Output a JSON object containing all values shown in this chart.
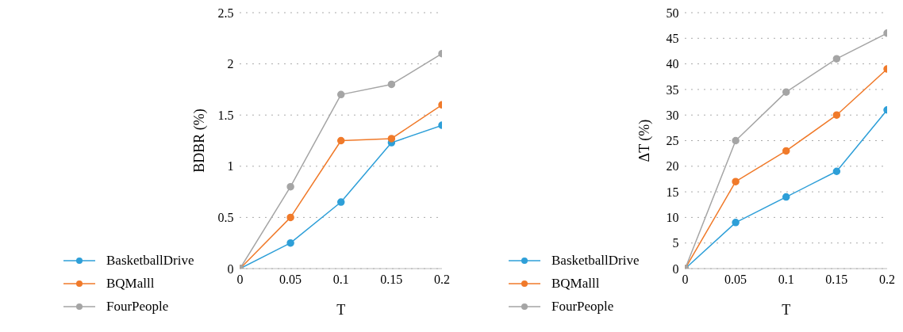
{
  "chart_data": [
    {
      "type": "line",
      "xlabel": "T",
      "ylabel": "BDBR (%)",
      "x": [
        0,
        0.05,
        0.1,
        0.15,
        0.2
      ],
      "xlim": [
        0,
        0.2
      ],
      "xticks": [
        0,
        0.05,
        0.1,
        0.15,
        0.2
      ],
      "ylim": [
        0,
        2.5
      ],
      "yticks": [
        0,
        0.5,
        1,
        1.5,
        2,
        2.5
      ],
      "grid": "y",
      "legend": "bottom",
      "marker": "circle",
      "line_style": "solid",
      "series": [
        {
          "name": "BasketballDrive",
          "color": "#2e9fd8",
          "values": [
            0,
            0.25,
            0.65,
            1.23,
            1.4
          ]
        },
        {
          "name": "BQMalll",
          "color": "#f07a2a",
          "values": [
            0,
            0.5,
            1.25,
            1.27,
            1.6
          ]
        },
        {
          "name": "FourPeople",
          "color": "#a5a5a5",
          "values": [
            0,
            0.8,
            1.7,
            1.8,
            2.1
          ]
        }
      ]
    },
    {
      "type": "line",
      "xlabel": "T",
      "ylabel": "ΔT (%)",
      "x": [
        0,
        0.05,
        0.1,
        0.15,
        0.2
      ],
      "xlim": [
        0,
        0.2
      ],
      "xticks": [
        0,
        0.05,
        0.1,
        0.15,
        0.2
      ],
      "ylim": [
        0,
        50
      ],
      "yticks": [
        0,
        5,
        10,
        15,
        20,
        25,
        30,
        35,
        40,
        45,
        50
      ],
      "grid": "y",
      "legend": "bottom",
      "marker": "circle",
      "line_style": "solid",
      "series": [
        {
          "name": "BasketballDrive",
          "color": "#2e9fd8",
          "values": [
            0,
            9,
            14,
            19,
            31
          ]
        },
        {
          "name": "BQMalll",
          "color": "#f07a2a",
          "values": [
            0,
            17,
            23,
            30,
            39
          ]
        },
        {
          "name": "FourPeople",
          "color": "#a5a5a5",
          "values": [
            0,
            25,
            34.5,
            41,
            46
          ]
        }
      ]
    }
  ]
}
